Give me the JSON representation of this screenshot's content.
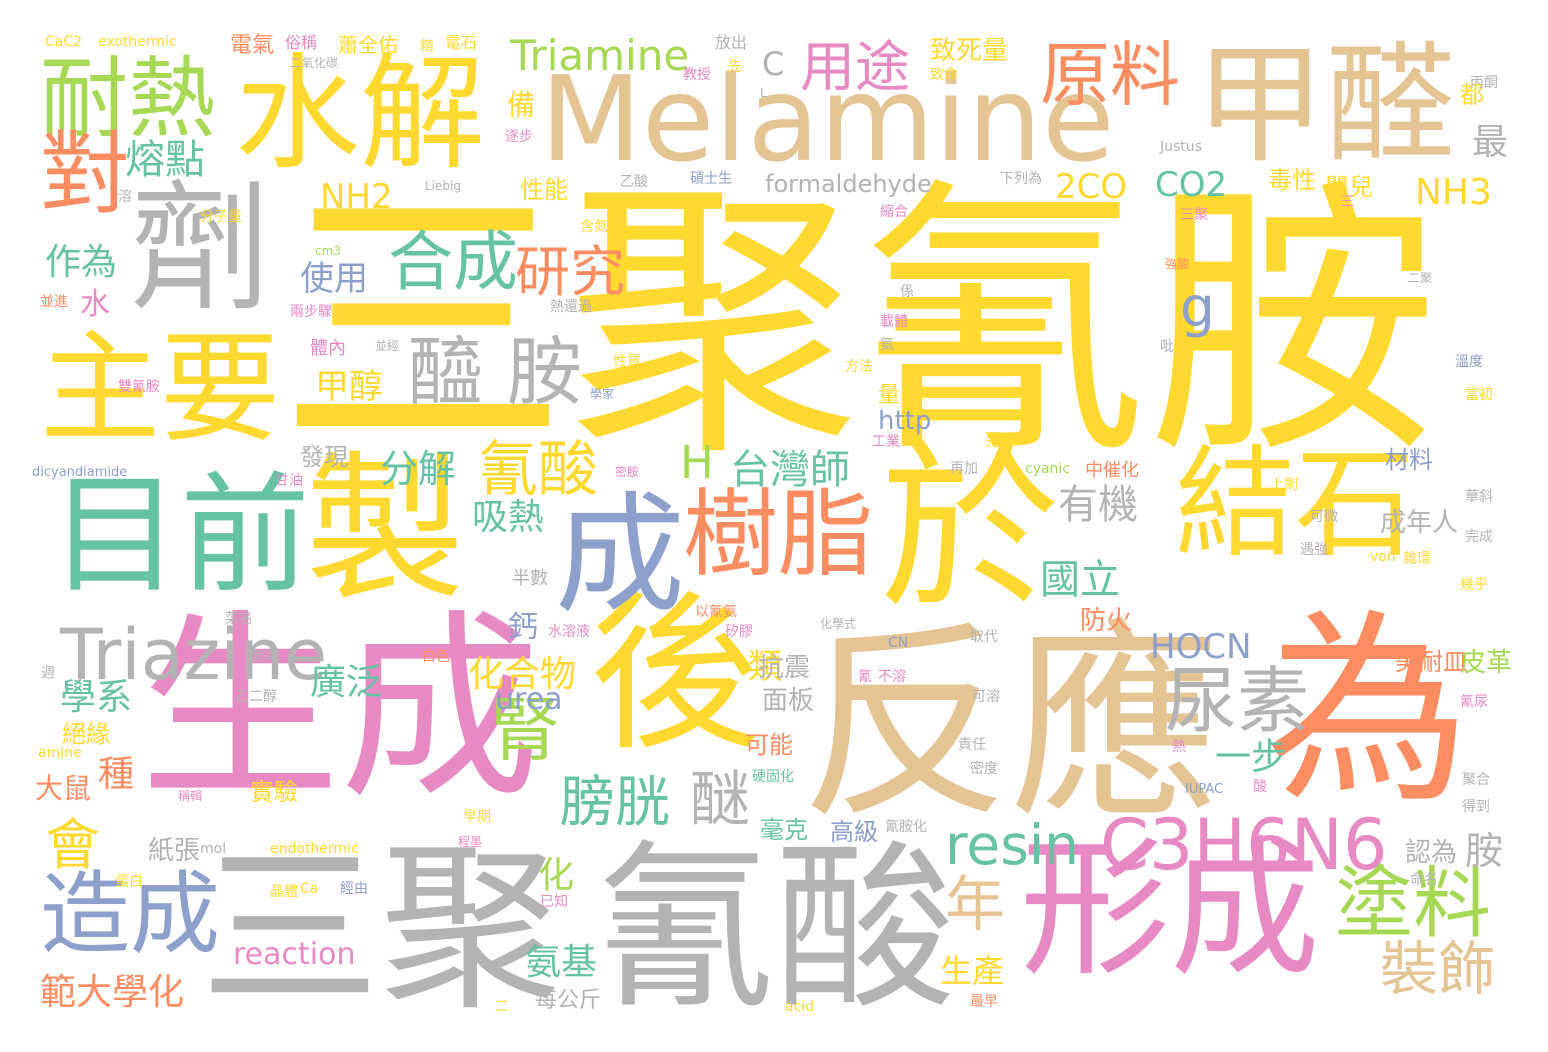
{
  "palette": {
    "yellow": "#ffd92f",
    "tan": "#e5c494",
    "gray": "#b3b3b3",
    "pink": "#e78ac3",
    "orange": "#fc8d62",
    "green": "#66c2a5",
    "blue": "#8da0cb",
    "lime": "#a6d854"
  },
  "words": [
    {
      "text": "三聚氰胺",
      "color": "yellow"
    },
    {
      "text": "反應",
      "color": "tan"
    },
    {
      "text": "生成",
      "color": "pink"
    },
    {
      "text": "三聚",
      "color": "gray"
    },
    {
      "text": "氰酸",
      "color": "gray"
    },
    {
      "text": "Melamine",
      "color": "tan"
    },
    {
      "text": "為",
      "color": "orange"
    },
    {
      "text": "於",
      "color": "yellow"
    },
    {
      "text": "製",
      "color": "yellow"
    },
    {
      "text": "後",
      "color": "yellow"
    },
    {
      "text": "形成",
      "color": "pink"
    },
    {
      "text": "甲醛",
      "color": "tan"
    },
    {
      "text": "水解",
      "color": "yellow"
    },
    {
      "text": "劑",
      "color": "gray"
    },
    {
      "text": "目前",
      "color": "green"
    },
    {
      "text": "成",
      "color": "blue"
    },
    {
      "text": "結石",
      "color": "yellow"
    },
    {
      "text": "主要",
      "color": "yellow"
    },
    {
      "text": "耐熱",
      "color": "lime"
    },
    {
      "text": "樹脂",
      "color": "orange"
    },
    {
      "text": "造成",
      "color": "blue"
    },
    {
      "text": "Triazine",
      "color": "gray"
    },
    {
      "text": "C3H6N6",
      "color": "pink"
    },
    {
      "text": "對",
      "color": "orange"
    },
    {
      "text": "原料",
      "color": "orange"
    },
    {
      "text": "塗料",
      "color": "lime"
    },
    {
      "text": "尿素",
      "color": "gray"
    },
    {
      "text": "合成",
      "color": "green"
    },
    {
      "text": "醯 胺",
      "color": "gray"
    },
    {
      "text": "腎",
      "color": "lime"
    },
    {
      "text": "resin",
      "color": "green"
    },
    {
      "text": "氰酸",
      "color": "yellow"
    },
    {
      "text": "會",
      "color": "yellow"
    },
    {
      "text": "用途",
      "color": "pink"
    },
    {
      "text": "研究",
      "color": "orange"
    },
    {
      "text": "膀胱",
      "color": "green"
    },
    {
      "text": "Triamine",
      "color": "lime"
    },
    {
      "text": "年",
      "color": "tan"
    },
    {
      "text": "裝飾",
      "color": "tan"
    },
    {
      "text": "g",
      "color": "blue"
    },
    {
      "text": "H",
      "color": "lime"
    },
    {
      "text": "醚",
      "color": "gray"
    },
    {
      "text": "熔點",
      "color": "green"
    },
    {
      "text": "NH2",
      "color": "yellow"
    },
    {
      "text": "2CO",
      "color": "yellow"
    },
    {
      "text": "CO2",
      "color": "green"
    },
    {
      "text": "NH3",
      "color": "yellow"
    },
    {
      "text": "台灣師",
      "color": "green"
    },
    {
      "text": "有機",
      "color": "gray"
    },
    {
      "text": "國立",
      "color": "green"
    },
    {
      "text": "HOCN",
      "color": "blue"
    },
    {
      "text": "使用",
      "color": "blue"
    },
    {
      "text": "作為",
      "color": "green"
    },
    {
      "text": "分解",
      "color": "green"
    },
    {
      "text": "吸熱",
      "color": "green"
    },
    {
      "text": "化合物",
      "color": "yellow"
    },
    {
      "text": "學系",
      "color": "green"
    },
    {
      "text": "廣泛",
      "color": "green"
    },
    {
      "text": "urea",
      "color": "blue"
    },
    {
      "text": "一步",
      "color": "green"
    },
    {
      "text": "範大學化",
      "color": "orange"
    },
    {
      "text": "reaction",
      "color": "pink"
    },
    {
      "text": "氨基",
      "color": "green"
    },
    {
      "text": "生產",
      "color": "yellow"
    },
    {
      "text": "甲醇",
      "color": "yellow"
    },
    {
      "text": "formaldehyde",
      "color": "gray"
    },
    {
      "text": "鈣",
      "color": "blue"
    },
    {
      "text": "類",
      "color": "yellow"
    },
    {
      "text": "大鼠",
      "color": "orange"
    },
    {
      "text": "種",
      "color": "orange"
    },
    {
      "text": "化",
      "color": "lime"
    },
    {
      "text": "水",
      "color": "pink"
    },
    {
      "text": "C",
      "color": "gray"
    },
    {
      "text": "備",
      "color": "yellow"
    },
    {
      "text": "性能",
      "color": "yellow"
    },
    {
      "text": "毒性",
      "color": "yellow"
    },
    {
      "text": "嬰兒",
      "color": "yellow"
    },
    {
      "text": "最",
      "color": "gray"
    },
    {
      "text": "都",
      "color": "yellow"
    },
    {
      "text": "成年人",
      "color": "gray"
    },
    {
      "text": "美耐皿",
      "color": "orange"
    },
    {
      "text": "皮革",
      "color": "lime"
    },
    {
      "text": "胺",
      "color": "gray"
    },
    {
      "text": "認為",
      "color": "gray"
    },
    {
      "text": "面板",
      "color": "gray"
    },
    {
      "text": "抗震",
      "color": "gray"
    },
    {
      "text": "防火",
      "color": "orange"
    },
    {
      "text": "可能",
      "color": "orange"
    },
    {
      "text": "毫克",
      "color": "green"
    },
    {
      "text": "高級",
      "color": "blue"
    },
    {
      "text": "實驗",
      "color": "yellow"
    },
    {
      "text": "紙張",
      "color": "gray"
    },
    {
      "text": "絕緣",
      "color": "yellow"
    },
    {
      "text": "致死量",
      "color": "yellow"
    },
    {
      "text": "發現",
      "color": "gray"
    },
    {
      "text": "材料",
      "color": "blue"
    },
    {
      "text": "http",
      "color": "blue"
    },
    {
      "text": "量",
      "color": "yellow"
    },
    {
      "text": "體內",
      "color": "pink"
    },
    {
      "text": "每公斤",
      "color": "gray"
    },
    {
      "text": "半數",
      "color": "gray"
    },
    {
      "text": "exothermic",
      "color": "yellow"
    },
    {
      "text": "CaC2",
      "color": "yellow"
    },
    {
      "text": "電氣",
      "color": "orange"
    },
    {
      "text": "俗稱",
      "color": "pink"
    },
    {
      "text": "蕭全佑",
      "color": "yellow"
    },
    {
      "text": "精",
      "color": "yellow"
    },
    {
      "text": "電石",
      "color": "yellow"
    },
    {
      "text": "放出",
      "color": "gray"
    },
    {
      "text": "丙酮",
      "color": "gray"
    },
    {
      "text": "二氧化碳",
      "color": "gray"
    },
    {
      "text": "教授",
      "color": "pink"
    },
    {
      "text": "先",
      "color": "yellow"
    },
    {
      "text": "致命",
      "color": "yellow"
    },
    {
      "text": "逐步",
      "color": "pink"
    },
    {
      "text": "Justus",
      "color": "gray"
    },
    {
      "text": "Liebig",
      "color": "gray"
    },
    {
      "text": "溶",
      "color": "gray"
    },
    {
      "text": "分子量",
      "color": "yellow"
    },
    {
      "text": "乙酸",
      "color": "gray"
    },
    {
      "text": "碩士生",
      "color": "blue"
    },
    {
      "text": "下列為",
      "color": "gray"
    },
    {
      "text": "三聚",
      "color": "pink"
    },
    {
      "text": "含氮",
      "color": "yellow"
    },
    {
      "text": "縮合",
      "color": "pink"
    },
    {
      "text": "cm3",
      "color": "lime"
    },
    {
      "text": "並進",
      "color": "orange"
    },
    {
      "text": "兩步驟",
      "color": "pink"
    },
    {
      "text": "熱還過",
      "color": "gray"
    },
    {
      "text": "係",
      "color": "gray"
    },
    {
      "text": "載體",
      "color": "pink"
    },
    {
      "text": "氨",
      "color": "gray"
    },
    {
      "text": "吡",
      "color": "gray"
    },
    {
      "text": "強酸",
      "color": "orange"
    },
    {
      "text": "二聚",
      "color": "gray"
    },
    {
      "text": "並經",
      "color": "gray"
    },
    {
      "text": "性質",
      "color": "yellow"
    },
    {
      "text": "雙氰胺",
      "color": "pink"
    },
    {
      "text": "學家",
      "color": "blue"
    },
    {
      "text": "方法",
      "color": "yellow"
    },
    {
      "text": "溫度",
      "color": "blue"
    },
    {
      "text": "當初",
      "color": "yellow"
    },
    {
      "text": "工業",
      "color": "pink"
    },
    {
      "text": "先將",
      "color": "yellow"
    },
    {
      "text": "再加",
      "color": "gray"
    },
    {
      "text": "cyanic",
      "color": "lime"
    },
    {
      "text": "中催化",
      "color": "orange"
    },
    {
      "text": "上則",
      "color": "yellow"
    },
    {
      "text": "華斜",
      "color": "gray"
    },
    {
      "text": "dicyandiamide",
      "color": "blue"
    },
    {
      "text": "甘油",
      "color": "pink"
    },
    {
      "text": "密胺",
      "color": "pink"
    },
    {
      "text": "可微",
      "color": "gray"
    },
    {
      "text": "完成",
      "color": "gray"
    },
    {
      "text": "遇強",
      "color": "gray"
    },
    {
      "text": "von",
      "color": "yellow"
    },
    {
      "text": "雜環",
      "color": "yellow"
    },
    {
      "text": "幾乎",
      "color": "yellow"
    },
    {
      "text": "菜名",
      "color": "gray"
    },
    {
      "text": "以氰氨",
      "color": "orange"
    },
    {
      "text": "矽膠",
      "color": "pink"
    },
    {
      "text": "化學式",
      "color": "gray"
    },
    {
      "text": "水溶液",
      "color": "pink"
    },
    {
      "text": "CN",
      "color": "blue"
    },
    {
      "text": "取代",
      "color": "gray"
    },
    {
      "text": "氰尿",
      "color": "pink"
    },
    {
      "text": "無味",
      "color": "gray"
    },
    {
      "text": "白色",
      "color": "orange"
    },
    {
      "text": "氰",
      "color": "pink"
    },
    {
      "text": "不溶",
      "color": "pink"
    },
    {
      "text": "可溶",
      "color": "gray"
    },
    {
      "text": "乙二醇",
      "color": "gray"
    },
    {
      "text": "amine",
      "color": "yellow"
    },
    {
      "text": "稱輯",
      "color": "pink"
    },
    {
      "text": "硬固化",
      "color": "green"
    },
    {
      "text": "責任",
      "color": "gray"
    },
    {
      "text": "熱",
      "color": "pink"
    },
    {
      "text": "密度",
      "color": "gray"
    },
    {
      "text": "聚合",
      "color": "gray"
    },
    {
      "text": "IUPAC",
      "color": "blue"
    },
    {
      "text": "酸",
      "color": "pink"
    },
    {
      "text": "得到",
      "color": "gray"
    },
    {
      "text": "早期",
      "color": "yellow"
    },
    {
      "text": "氰胺化",
      "color": "gray"
    },
    {
      "text": "程墨",
      "color": "pink"
    },
    {
      "text": "mol",
      "color": "gray"
    },
    {
      "text": "endothermic",
      "color": "yellow"
    },
    {
      "text": "蛋白",
      "color": "yellow"
    },
    {
      "text": "晶體",
      "color": "yellow"
    },
    {
      "text": "Ca",
      "color": "yellow"
    },
    {
      "text": "經由",
      "color": "blue"
    },
    {
      "text": "已知",
      "color": "pink"
    },
    {
      "text": "命名",
      "color": "gray"
    },
    {
      "text": "二",
      "color": "yellow"
    },
    {
      "text": "acid",
      "color": "yellow"
    },
    {
      "text": "最早",
      "color": "orange"
    },
    {
      "text": "L",
      "color": "gray"
    },
    {
      "text": "三",
      "color": "pink"
    },
    {
      "text": "週",
      "color": "gray"
    }
  ]
}
